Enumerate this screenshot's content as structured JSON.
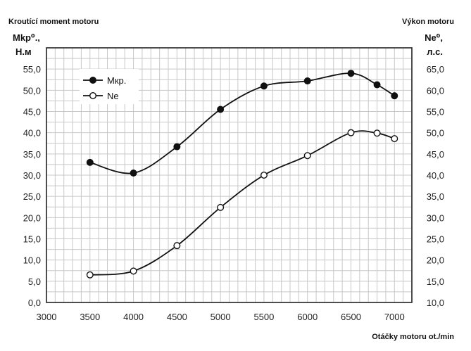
{
  "chart_data": {
    "type": "line",
    "title_left": "Kroutící moment motoru",
    "title_right": "Výkon motoru",
    "left_axis_symbol": "Mkp⁰.,",
    "left_axis_unit": "Н.м",
    "right_axis_symbol": "Ne⁰,",
    "right_axis_unit": "л.с.",
    "xlabel": "Otáčky motoru   ot./min",
    "x_ticks": [
      "3000",
      "3500",
      "4000",
      "4500",
      "5000",
      "5500",
      "6000",
      "6500",
      "7000"
    ],
    "xlim": [
      3000,
      7200
    ],
    "y_left_ticks": [
      "0,0",
      "5,0",
      "10,0",
      "15,0",
      "20,0",
      "25,0",
      "30,0",
      "35,0",
      "40,0",
      "45,0",
      "50,0",
      "55,0"
    ],
    "ylim_left": [
      0,
      60
    ],
    "y_right_ticks": [
      "10,0",
      "15,0",
      "20,0",
      "25,0",
      "30,0",
      "35,0",
      "40,0",
      "45,0",
      "50,0",
      "55,0",
      "60,0",
      "65,0"
    ],
    "ylim_right": [
      10,
      70
    ],
    "grid": true,
    "legend_position": "top-left",
    "series": [
      {
        "name": "Мкр.",
        "axis": "left",
        "marker": "filled",
        "x": [
          3500,
          4000,
          4500,
          5000,
          5500,
          6000,
          6500,
          6800,
          7000
        ],
        "y": [
          33.0,
          30.5,
          36.7,
          45.5,
          51.0,
          52.2,
          54.0,
          51.3,
          48.7
        ]
      },
      {
        "name": "Ne",
        "axis": "right",
        "marker": "open",
        "x": [
          3500,
          4000,
          4500,
          5000,
          5500,
          6000,
          6500,
          6800,
          7000
        ],
        "y": [
          16.5,
          17.4,
          23.4,
          32.4,
          40.0,
          44.6,
          50.0,
          49.9,
          48.6
        ]
      }
    ]
  }
}
